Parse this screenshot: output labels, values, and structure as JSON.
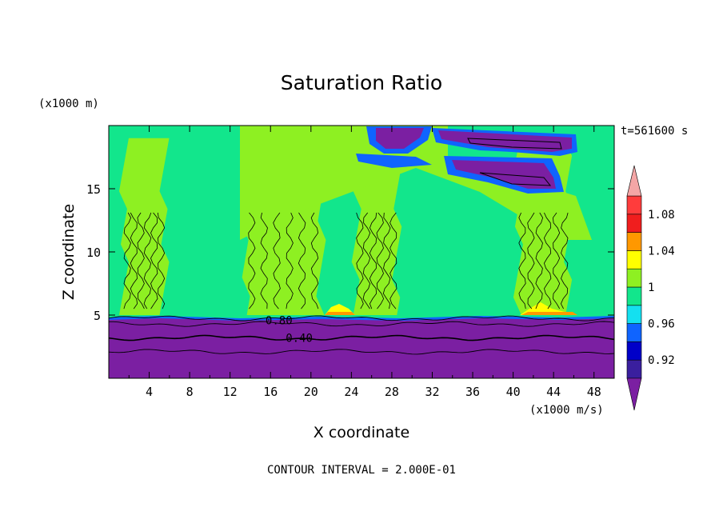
{
  "chart_data": {
    "type": "heatmap",
    "title": "Saturation Ratio",
    "xlabel": "X coordinate",
    "ylabel": "Z coordinate",
    "x_unit": "(x1000 m/s)",
    "y_unit": "(x1000 m)",
    "time_label": "t=561600 s",
    "footer": "CONTOUR INTERVAL = 2.000E-01",
    "xlim": [
      0,
      50
    ],
    "ylim": [
      0,
      20
    ],
    "x_ticks": [
      4,
      8,
      12,
      16,
      20,
      24,
      28,
      32,
      36,
      40,
      44,
      48
    ],
    "y_ticks": [
      5,
      10,
      15
    ],
    "contour_labels": [
      {
        "text": "0.80",
        "x": 15.5,
        "y": 4.6
      },
      {
        "text": "0.40",
        "x": 17.5,
        "y": 3.2
      }
    ],
    "colorbar": {
      "levels": [
        0.9,
        0.92,
        0.94,
        0.96,
        0.98,
        1.0,
        1.02,
        1.04,
        1.06,
        1.08,
        1.1
      ],
      "tick_labels": [
        "0.92",
        "0.96",
        "1",
        "1.04",
        "1.08"
      ],
      "colors": [
        "#7b1fa2",
        "#3a1f9e",
        "#0000c8",
        "#0f64ff",
        "#14e0f0",
        "#12e68c",
        "#8ef022",
        "#ffff00",
        "#ff9800",
        "#f01e1e",
        "#ff3c3c",
        "#f4a6a6"
      ],
      "extend": "both"
    },
    "regions": {
      "dry_layer_top_km": 5,
      "background_color": "#12e68c",
      "moist_plumes": [
        [
          1.5,
          5.5
        ],
        [
          13.5,
          21
        ],
        [
          24.5,
          28.5
        ],
        [
          40.5,
          45.5
        ]
      ],
      "upper_moist_top_km": 20
    }
  }
}
